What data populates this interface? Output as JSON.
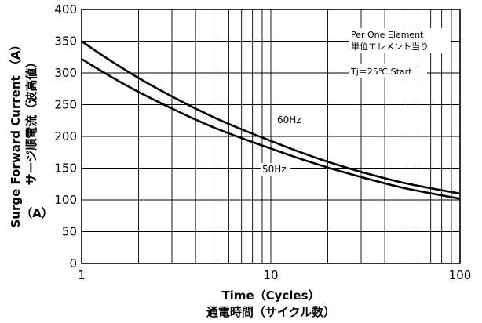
{
  "chart_data": {
    "type": "line",
    "xscale": "log",
    "xlim": [
      1,
      100
    ],
    "ylim": [
      0,
      400
    ],
    "grid": true,
    "x_ticks": [
      "1",
      "10",
      "100"
    ],
    "y_ticks": [
      "0",
      "50",
      "100",
      "150",
      "200",
      "250",
      "300",
      "350",
      "400"
    ],
    "xlabel": [
      "Time（Cycles）",
      "通電時間（サイクル数）"
    ],
    "ylabel": [
      "Surge Forward Current （A）",
      "サージ順電流（波高値）",
      "（A）"
    ],
    "annotations": [
      "Per One Element",
      "単位エレメント当り",
      "Tj＝25℃ Start"
    ],
    "series": [
      {
        "name": "60Hz",
        "x": [
          1,
          2,
          3,
          5,
          10,
          20,
          30,
          50,
          100
        ],
        "values": [
          350,
          292,
          263,
          230,
          193,
          160,
          144,
          127,
          110
        ]
      },
      {
        "name": "50Hz",
        "x": [
          1,
          2,
          3,
          5,
          10,
          20,
          30,
          50,
          100
        ],
        "values": [
          322,
          270,
          244,
          214,
          181,
          151,
          136,
          119,
          102
        ]
      }
    ]
  },
  "colors": {
    "line": "#000000",
    "background": "#ffffff"
  }
}
